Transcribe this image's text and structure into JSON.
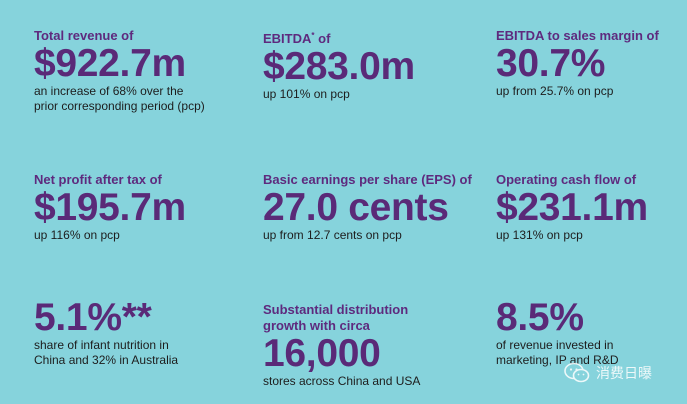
{
  "stats": [
    {
      "heading": "Total revenue of",
      "value": "$922.7m",
      "detail_1": "an increase of 68% over the",
      "detail_2": "prior corresponding period (pcp)"
    },
    {
      "heading": "EBITDA",
      "heading_sup": "*",
      "heading_suffix": " of",
      "value": "$283.0m",
      "detail_1": "up 101% on pcp"
    },
    {
      "heading": "EBITDA to sales margin of",
      "value": "30.7%",
      "detail_1": "up from 25.7% on pcp"
    },
    {
      "heading": "Net profit after tax of",
      "value": "$195.7m",
      "detail_1": "up 116% on pcp"
    },
    {
      "heading": "Basic earnings per share (EPS) of",
      "value": "27.0 cents",
      "detail_1": "up from 12.7 cents on pcp"
    },
    {
      "heading": "Operating cash flow of",
      "value": "$231.1m",
      "detail_1": "up 131% on pcp"
    },
    {
      "value": "5.1%**",
      "detail_1": "share of infant nutrition in",
      "detail_2": "China and 32% in Australia"
    },
    {
      "heading": "Substantial distribution",
      "heading_2": "growth with circa",
      "value": "16,000",
      "detail_1": "stores across China and USA"
    },
    {
      "value": "8.5%",
      "detail_1": "of revenue invested in",
      "detail_2": "marketing, IP and R&D"
    }
  ],
  "watermark": {
    "text": "消费日曝",
    "icon": "wechat-icon"
  },
  "colors": {
    "background": "#86d3dc",
    "accent": "#5a2a78",
    "body_text": "#1d1d1d"
  }
}
